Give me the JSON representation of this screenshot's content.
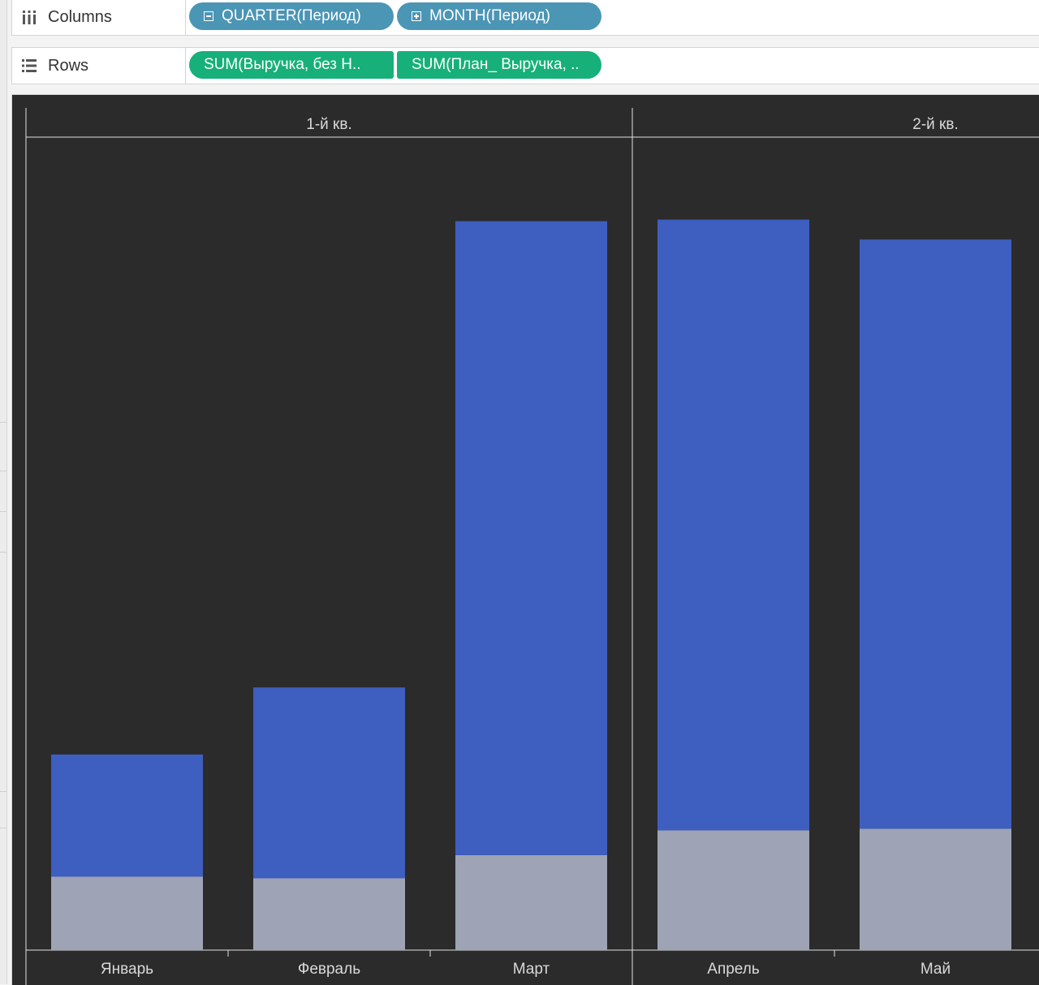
{
  "shelves": {
    "columns": {
      "label": "Columns",
      "pills": [
        {
          "text": "QUARTER(Период)",
          "toggle": "collapse"
        },
        {
          "text": "MONTH(Период)",
          "toggle": "expand"
        }
      ]
    },
    "rows": {
      "label": "Rows",
      "pills": [
        {
          "text": "SUM(Выручка, без Н.."
        },
        {
          "text": "SUM(План_ Выручка, .."
        }
      ]
    }
  },
  "colors": {
    "dimension_pill": "#4b95b5",
    "measure_pill": "#17b07a",
    "plan_bar": "#3e5ec0",
    "actual_bar": "#9ea3b5",
    "background": "#2b2b2b"
  },
  "chart_data": {
    "type": "bar",
    "stacked": true,
    "panels": [
      {
        "header": "1-й кв.",
        "categories": [
          "Январь",
          "Февраль",
          "Март"
        ]
      },
      {
        "header": "2-й кв.",
        "categories": [
          "Апрель",
          "Май"
        ]
      }
    ],
    "categories": [
      "Январь",
      "Февраль",
      "Март",
      "Апрель",
      "Май"
    ],
    "series": [
      {
        "values": [
          9.2,
          9.0,
          11.9,
          15.0,
          15.2
        ]
      },
      {
        "values": [
          15.3,
          23.9,
          79.4,
          76.5,
          73.8
        ]
      }
    ],
    "ylim": [
      0,
      100
    ],
    "grid": false
  }
}
